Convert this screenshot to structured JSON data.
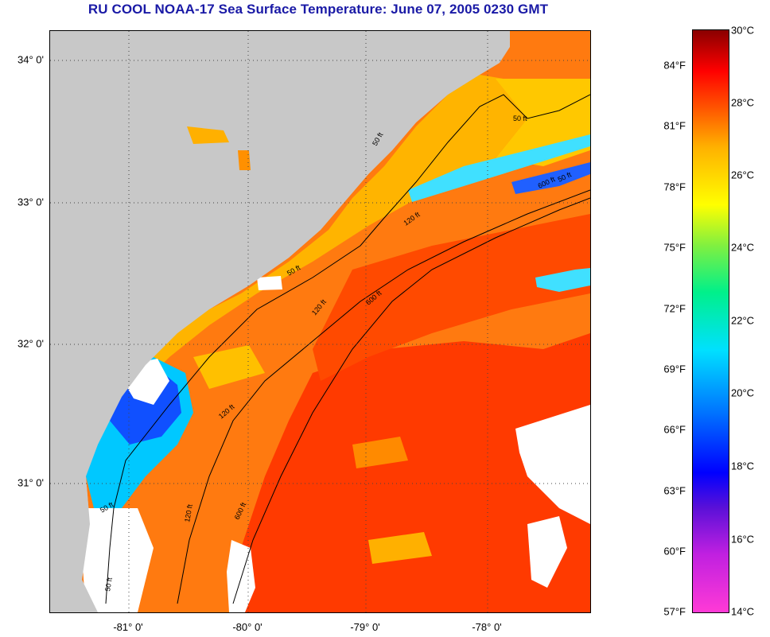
{
  "title": "RU COOL  NOAA-17  Sea Surface Temperature:  June 07, 2005 0230 GMT",
  "latitude_labels": [
    "34° 0'",
    "33° 0'",
    "32° 0'",
    "31° 0'"
  ],
  "longitude_labels": [
    "-81° 0'",
    "-80° 0'",
    "-79° 0'",
    "-78° 0'"
  ],
  "contour_labels": {
    "c50_a": "50 ft",
    "c50_b": "50 ft",
    "c50_c": "50 ft",
    "c50_d": "50 ft",
    "c50_e": "50 ft",
    "c50_f": "50 ft",
    "c120_a": "120 ft",
    "c120_b": "120 ft",
    "c120_c": "120 ft",
    "c120_d": "120 ft",
    "c600_a": "600 ft",
    "c600_b": "600 ft",
    "c600_c": "600 ft"
  },
  "colorbar": {
    "fahrenheit": [
      "84°F",
      "81°F",
      "78°F",
      "75°F",
      "72°F",
      "69°F",
      "66°F",
      "63°F",
      "60°F",
      "57°F"
    ],
    "celsius": [
      "30°C",
      "28°C",
      "26°C",
      "24°C",
      "22°C",
      "20°C",
      "18°C",
      "16°C",
      "14°C"
    ]
  },
  "colors": {
    "title": "#1a1aa6",
    "land": "#c8c8c8",
    "warm": "#ff4a00",
    "cool": "#1050ff",
    "cloud": "#ffffff"
  }
}
